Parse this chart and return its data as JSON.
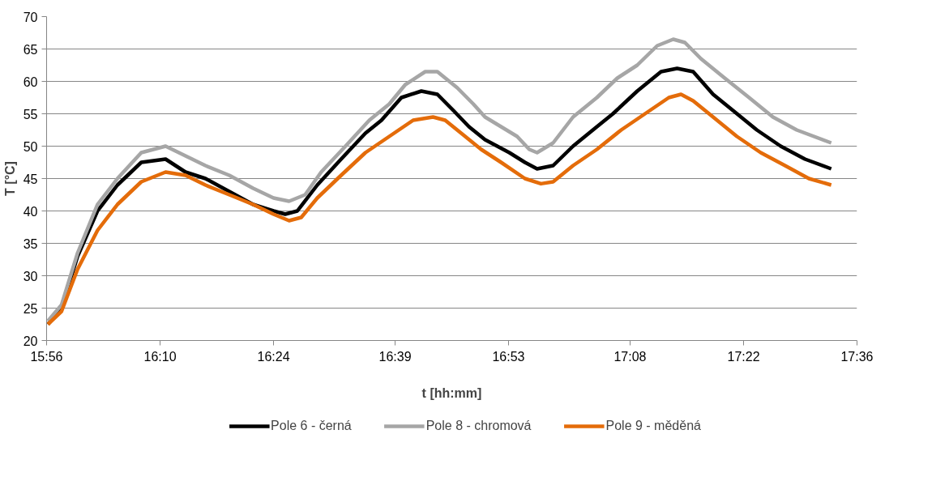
{
  "chart_data": {
    "type": "line",
    "xlabel": "t [hh:mm]",
    "ylabel": "T [°C]",
    "xlim": [
      15.9333,
      17.6
    ],
    "xticks": [
      {
        "value": 15.9333,
        "label": "15:56"
      },
      {
        "value": 16.1667,
        "label": "16:10"
      },
      {
        "value": 16.4,
        "label": "16:24"
      },
      {
        "value": 16.65,
        "label": "16:39"
      },
      {
        "value": 16.8833,
        "label": "16:53"
      },
      {
        "value": 17.1333,
        "label": "17:08"
      },
      {
        "value": 17.3667,
        "label": "17:22"
      },
      {
        "value": 17.6,
        "label": "17:36"
      }
    ],
    "ylim": [
      20,
      70
    ],
    "yticks": [
      20,
      25,
      30,
      35,
      40,
      45,
      50,
      55,
      60,
      65,
      70
    ],
    "grid": "y",
    "legend": "bottom",
    "marker": "none",
    "line_style": "solid",
    "series": [
      {
        "name": "Pole 6 - černá",
        "color": "#000000",
        "x": [
          15.936,
          15.964,
          15.997,
          16.038,
          16.079,
          16.128,
          16.178,
          16.219,
          16.26,
          16.309,
          16.358,
          16.4,
          16.424,
          16.449,
          16.49,
          16.539,
          16.589,
          16.622,
          16.663,
          16.704,
          16.737,
          16.77,
          16.802,
          16.835,
          16.885,
          16.917,
          16.942,
          16.975,
          17.016,
          17.065,
          17.098,
          17.148,
          17.197,
          17.23,
          17.263,
          17.304,
          17.345,
          17.394,
          17.443,
          17.493,
          17.547
        ],
        "values": [
          22.5,
          25,
          33,
          40,
          44,
          47.5,
          48,
          46,
          45,
          43,
          41,
          40,
          39.5,
          40,
          44,
          48,
          52,
          54,
          57.5,
          58.5,
          58,
          55.5,
          53,
          51,
          49,
          47.5,
          46.5,
          47,
          50,
          53,
          55,
          58.5,
          61.5,
          62,
          61.5,
          58,
          55.5,
          52.5,
          50,
          48,
          46.5
        ]
      },
      {
        "name": "Pole 8 - chromová",
        "color": "#a6a6a6",
        "x": [
          15.936,
          15.964,
          15.997,
          16.038,
          16.079,
          16.128,
          16.178,
          16.219,
          16.26,
          16.309,
          16.358,
          16.4,
          16.432,
          16.465,
          16.498,
          16.548,
          16.597,
          16.638,
          16.671,
          16.712,
          16.737,
          16.778,
          16.811,
          16.835,
          16.868,
          16.901,
          16.926,
          16.942,
          16.975,
          17.016,
          17.065,
          17.107,
          17.148,
          17.189,
          17.222,
          17.246,
          17.279,
          17.328,
          17.378,
          17.427,
          17.476,
          17.547
        ],
        "values": [
          23,
          25.5,
          33.5,
          41,
          45,
          49,
          50,
          48.5,
          47,
          45.5,
          43.5,
          42,
          41.5,
          42.5,
          46,
          50,
          54,
          56.5,
          59.5,
          61.5,
          61.5,
          59,
          56.5,
          54.5,
          53,
          51.5,
          49.5,
          49,
          50.5,
          54.5,
          57.5,
          60.5,
          62.5,
          65.5,
          66.5,
          66,
          63.5,
          60.5,
          57.5,
          54.5,
          52.5,
          50.5
        ]
      },
      {
        "name": "Pole 9 - měděná",
        "color": "#e46c0a",
        "x": [
          15.936,
          15.964,
          15.997,
          16.038,
          16.079,
          16.128,
          16.178,
          16.219,
          16.26,
          16.309,
          16.358,
          16.4,
          16.432,
          16.457,
          16.49,
          16.539,
          16.589,
          16.638,
          16.687,
          16.728,
          16.753,
          16.786,
          16.827,
          16.868,
          16.917,
          16.95,
          16.975,
          17.016,
          17.065,
          17.115,
          17.164,
          17.213,
          17.238,
          17.263,
          17.304,
          17.353,
          17.402,
          17.452,
          17.501,
          17.547
        ],
        "values": [
          22.5,
          24.5,
          31,
          37,
          41,
          44.5,
          46,
          45.5,
          44,
          42.5,
          41,
          39.5,
          38.5,
          39,
          42,
          45.5,
          49,
          51.5,
          54,
          54.5,
          54,
          52,
          49.5,
          47.5,
          45,
          44.2,
          44.5,
          47,
          49.5,
          52.5,
          55,
          57.5,
          58,
          57,
          54.5,
          51.5,
          49,
          47,
          45,
          44
        ]
      }
    ]
  }
}
